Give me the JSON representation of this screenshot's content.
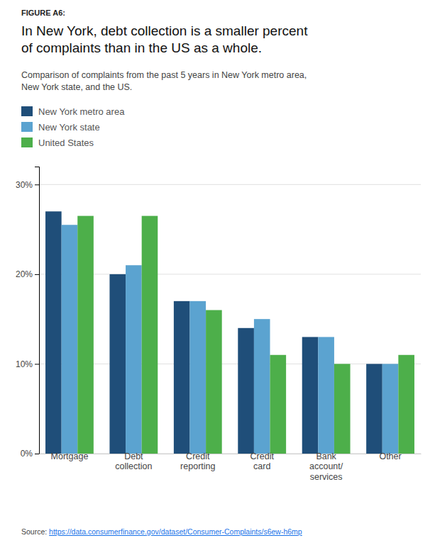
{
  "chart_data": {
    "type": "bar",
    "title": "In New York, debt collection is a smaller percent\nof complaints than in the US as a whole.",
    "subtitle": "Comparison of complaints from the past 5 years in New York metro area,\nNew York state, and the US.",
    "annotations": [
      "FIGURE A6:",
      "Source: ",
      "https://data.consumerfinance.gov/dataset/Consumer-Complaints/s6ew-h6mp"
    ],
    "categories": [
      "Mortgage",
      "Debt\ncollection",
      "Credit\nreporting",
      "Credit\ncard",
      "Bank\naccount/\nservices",
      "Other"
    ],
    "series": [
      {
        "name": "New York metro area",
        "color": "#1f4e79",
        "values": [
          0.27,
          0.2,
          0.17,
          0.14,
          0.13,
          0.1
        ]
      },
      {
        "name": "New York state",
        "color": "#5ba3d0",
        "values": [
          0.255,
          0.21,
          0.17,
          0.15,
          0.13,
          0.1
        ]
      },
      {
        "name": "United States",
        "color": "#4daf4a",
        "values": [
          0.265,
          0.265,
          0.16,
          0.11,
          0.1,
          0.11
        ]
      }
    ],
    "ylim": [
      0,
      0.32
    ],
    "yticks": [
      {
        "value": 0,
        "label": "0%"
      },
      {
        "value": 0.1,
        "label": "10%"
      },
      {
        "value": 0.2,
        "label": "20%"
      },
      {
        "value": 0.3,
        "label": "30%"
      }
    ],
    "grid": true,
    "legend": "upper left"
  }
}
